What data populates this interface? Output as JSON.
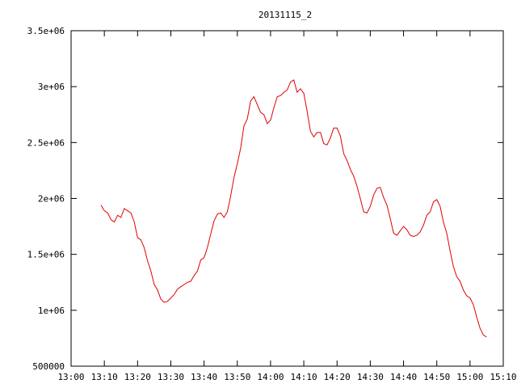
{
  "chart_data": {
    "type": "line",
    "title": "20131115_2",
    "xlabel": "",
    "ylabel": "",
    "xlim": [
      "13:00",
      "15:10"
    ],
    "ylim": [
      500000,
      3500000
    ],
    "grid": false,
    "legend": "none",
    "x_ticks": [
      "13:00",
      "13:10",
      "13:20",
      "13:30",
      "13:40",
      "13:50",
      "14:00",
      "14:10",
      "14:20",
      "14:30",
      "14:40",
      "14:50",
      "15:00",
      "15:10"
    ],
    "y_ticks": [
      {
        "value": 500000,
        "label": "500000"
      },
      {
        "value": 1000000,
        "label": "1e+06"
      },
      {
        "value": 1500000,
        "label": "1.5e+06"
      },
      {
        "value": 2000000,
        "label": "2e+06"
      },
      {
        "value": 2500000,
        "label": "2.5e+06"
      },
      {
        "value": 3000000,
        "label": "3e+06"
      },
      {
        "value": 3500000,
        "label": "3.5e+06"
      }
    ],
    "series": [
      {
        "color": "#e00000",
        "points": [
          [
            "13:09",
            1940000
          ],
          [
            "13:10",
            1890000
          ],
          [
            "13:11",
            1870000
          ],
          [
            "13:12",
            1810000
          ],
          [
            "13:13",
            1790000
          ],
          [
            "13:14",
            1850000
          ],
          [
            "13:15",
            1830000
          ],
          [
            "13:16",
            1910000
          ],
          [
            "13:17",
            1890000
          ],
          [
            "13:18",
            1870000
          ],
          [
            "13:19",
            1790000
          ],
          [
            "13:20",
            1650000
          ],
          [
            "13:21",
            1630000
          ],
          [
            "13:22",
            1560000
          ],
          [
            "13:23",
            1440000
          ],
          [
            "13:24",
            1350000
          ],
          [
            "13:25",
            1230000
          ],
          [
            "13:26",
            1180000
          ],
          [
            "13:27",
            1100000
          ],
          [
            "13:28",
            1070000
          ],
          [
            "13:29",
            1080000
          ],
          [
            "13:30",
            1110000
          ],
          [
            "13:31",
            1140000
          ],
          [
            "13:32",
            1190000
          ],
          [
            "13:33",
            1210000
          ],
          [
            "13:34",
            1230000
          ],
          [
            "13:35",
            1250000
          ],
          [
            "13:36",
            1260000
          ],
          [
            "13:37",
            1310000
          ],
          [
            "13:38",
            1350000
          ],
          [
            "13:39",
            1450000
          ],
          [
            "13:40",
            1470000
          ],
          [
            "13:41",
            1560000
          ],
          [
            "13:42",
            1680000
          ],
          [
            "13:43",
            1800000
          ],
          [
            "13:44",
            1860000
          ],
          [
            "13:45",
            1870000
          ],
          [
            "13:46",
            1830000
          ],
          [
            "13:47",
            1880000
          ],
          [
            "13:48",
            2020000
          ],
          [
            "13:49",
            2190000
          ],
          [
            "13:50",
            2310000
          ],
          [
            "13:51",
            2450000
          ],
          [
            "13:52",
            2650000
          ],
          [
            "13:53",
            2710000
          ],
          [
            "13:54",
            2870000
          ],
          [
            "13:55",
            2910000
          ],
          [
            "13:56",
            2840000
          ],
          [
            "13:57",
            2770000
          ],
          [
            "13:58",
            2750000
          ],
          [
            "13:59",
            2670000
          ],
          [
            "14:00",
            2700000
          ],
          [
            "14:01",
            2810000
          ],
          [
            "14:02",
            2910000
          ],
          [
            "14:03",
            2920000
          ],
          [
            "14:04",
            2950000
          ],
          [
            "14:05",
            2970000
          ],
          [
            "14:06",
            3040000
          ],
          [
            "14:07",
            3060000
          ],
          [
            "14:08",
            2950000
          ],
          [
            "14:09",
            2980000
          ],
          [
            "14:10",
            2940000
          ],
          [
            "14:11",
            2780000
          ],
          [
            "14:12",
            2600000
          ],
          [
            "14:13",
            2550000
          ],
          [
            "14:14",
            2590000
          ],
          [
            "14:15",
            2590000
          ],
          [
            "14:16",
            2490000
          ],
          [
            "14:17",
            2480000
          ],
          [
            "14:18",
            2540000
          ],
          [
            "14:19",
            2630000
          ],
          [
            "14:20",
            2630000
          ],
          [
            "14:21",
            2560000
          ],
          [
            "14:22",
            2400000
          ],
          [
            "14:23",
            2340000
          ],
          [
            "14:24",
            2260000
          ],
          [
            "14:25",
            2200000
          ],
          [
            "14:26",
            2110000
          ],
          [
            "14:27",
            2000000
          ],
          [
            "14:28",
            1880000
          ],
          [
            "14:29",
            1870000
          ],
          [
            "14:30",
            1930000
          ],
          [
            "14:31",
            2030000
          ],
          [
            "14:32",
            2090000
          ],
          [
            "14:33",
            2100000
          ],
          [
            "14:34",
            2010000
          ],
          [
            "14:35",
            1940000
          ],
          [
            "14:36",
            1820000
          ],
          [
            "14:37",
            1690000
          ],
          [
            "14:38",
            1670000
          ],
          [
            "14:39",
            1710000
          ],
          [
            "14:40",
            1750000
          ],
          [
            "14:41",
            1720000
          ],
          [
            "14:42",
            1670000
          ],
          [
            "14:43",
            1660000
          ],
          [
            "14:44",
            1670000
          ],
          [
            "14:45",
            1700000
          ],
          [
            "14:46",
            1760000
          ],
          [
            "14:47",
            1850000
          ],
          [
            "14:48",
            1880000
          ],
          [
            "14:49",
            1970000
          ],
          [
            "14:50",
            1990000
          ],
          [
            "14:51",
            1930000
          ],
          [
            "14:52",
            1790000
          ],
          [
            "14:53",
            1690000
          ],
          [
            "14:54",
            1530000
          ],
          [
            "14:55",
            1390000
          ],
          [
            "14:56",
            1300000
          ],
          [
            "14:57",
            1260000
          ],
          [
            "14:58",
            1180000
          ],
          [
            "14:59",
            1130000
          ],
          [
            "15:00",
            1110000
          ],
          [
            "15:01",
            1050000
          ],
          [
            "15:02",
            940000
          ],
          [
            "15:03",
            840000
          ],
          [
            "15:04",
            780000
          ],
          [
            "15:05",
            760000
          ]
        ]
      }
    ]
  }
}
